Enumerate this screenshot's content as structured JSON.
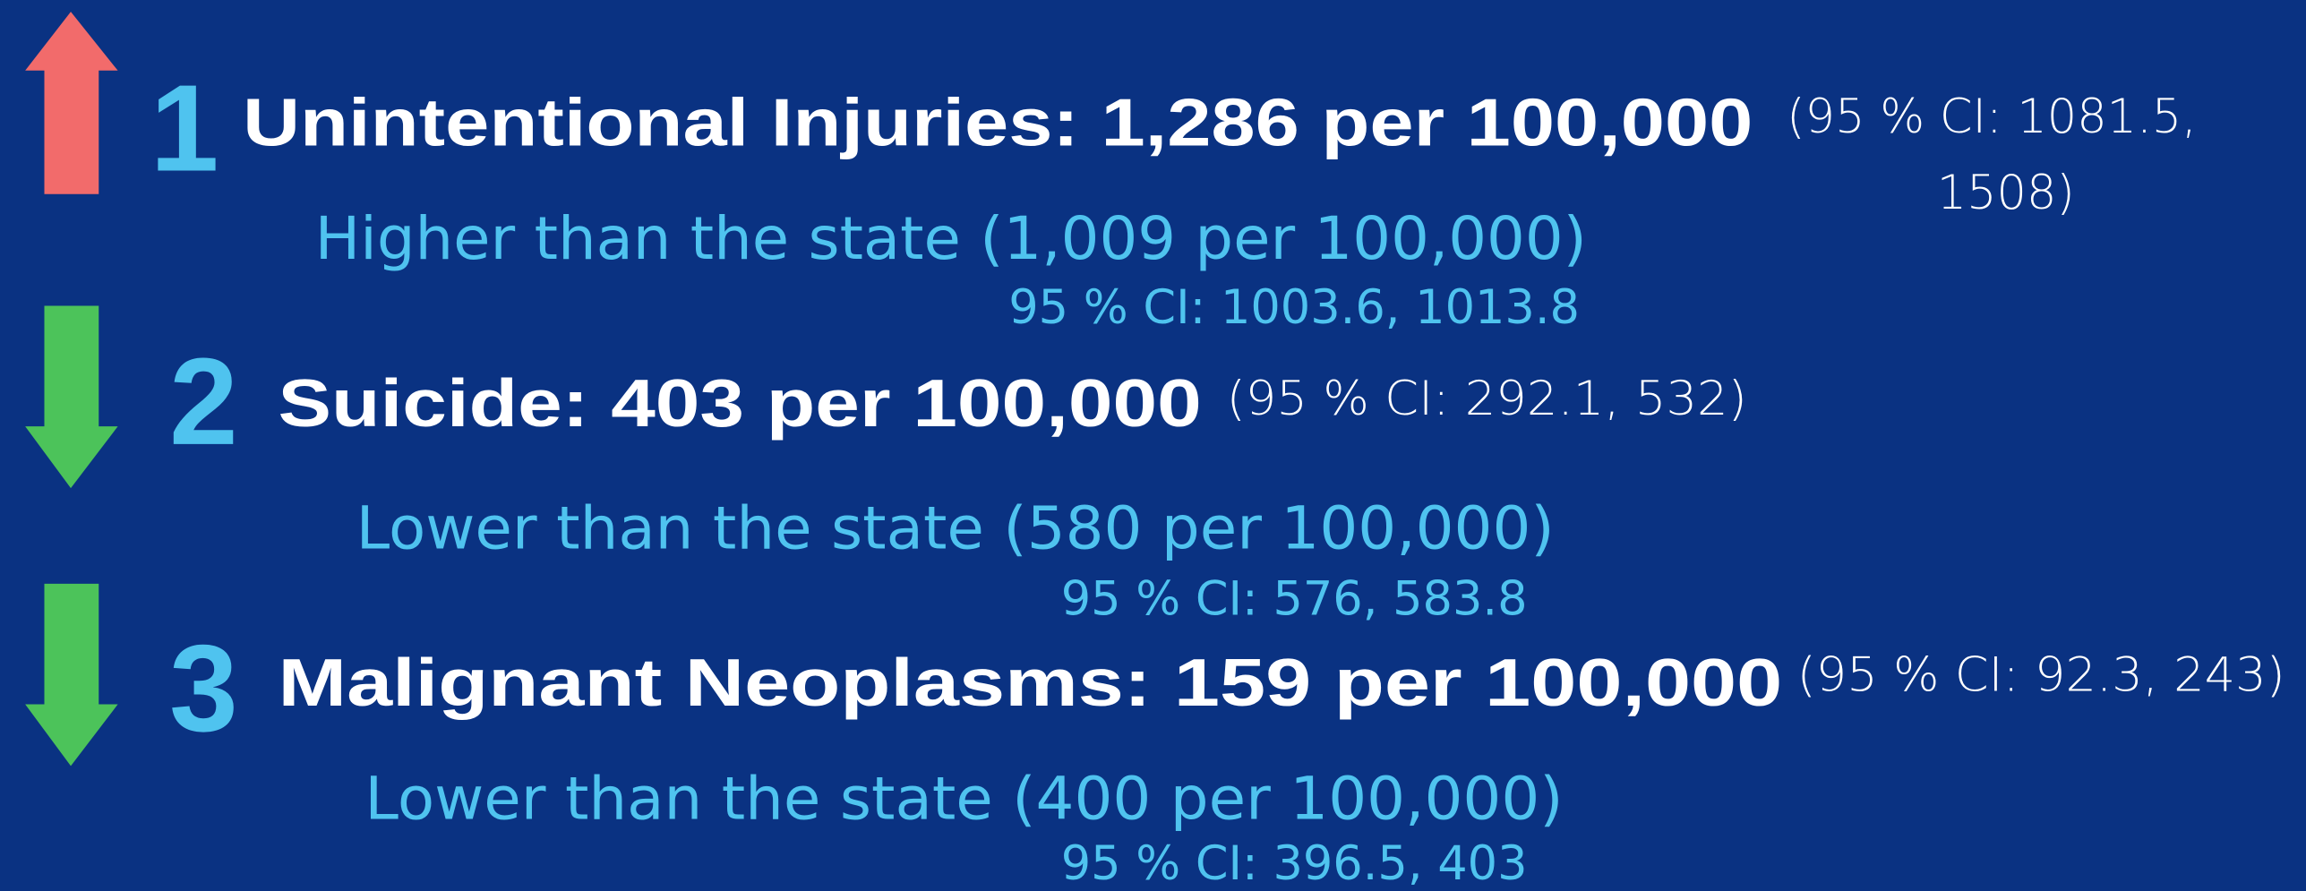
{
  "items": [
    {
      "rank": "1",
      "title": "Unintentional Injuries: 1,286 per 100,000",
      "ci_lines": [
        "(95 % CI: 1081.5,",
        "1508)"
      ],
      "comparison": "Higher than the state (1,009 per 100,000)",
      "state_ci": "95 % CI: 1003.6, 1013.8"
    },
    {
      "rank": "2",
      "title": "Suicide: 403 per 100,000",
      "ci_lines": [
        "(95 % CI: 292.1, 532)"
      ],
      "comparison": "Lower than the state (580 per 100,000)",
      "state_ci": "95 % CI: 576, 583.8"
    },
    {
      "rank": "3",
      "title": "Malignant Neoplasms: 159 per 100,000",
      "ci_lines": [
        "(95 % CI: 92.3, 243)"
      ],
      "comparison": "Lower than the state (400 per 100,000)",
      "state_ci": "95 % CI: 396.5, 403"
    }
  ]
}
